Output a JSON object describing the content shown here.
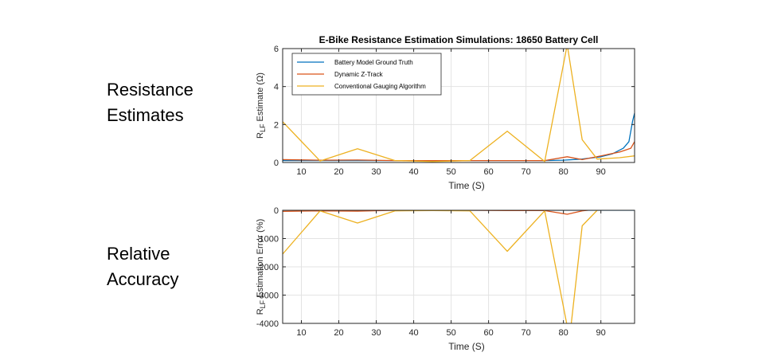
{
  "slide": {
    "top_label": [
      "Resistance",
      "Estimates"
    ],
    "bottom_label": [
      "Relative",
      "Accuracy"
    ]
  },
  "chart_data": [
    {
      "type": "line",
      "title": "E-Bike Resistance Estimation Simulations: 18650 Battery Cell",
      "xlabel": "Time (S)",
      "ylabel_main": "R",
      "ylabel_sub": "LF",
      "ylabel_rest": " Estimate (Ω)",
      "xlim": [
        5,
        99
      ],
      "ylim": [
        0,
        6
      ],
      "xticks": [
        10,
        20,
        30,
        40,
        50,
        60,
        70,
        80,
        90
      ],
      "yticks": [
        0,
        2,
        4,
        6
      ],
      "grid": true,
      "legend_position": "top-left",
      "series": [
        {
          "name": "Battery Model Ground Truth",
          "color": "#0072BD",
          "x": [
            5,
            15,
            25,
            35,
            45,
            55,
            65,
            75,
            80,
            85,
            90,
            93,
            96,
            97.5,
            98.5,
            99
          ],
          "y": [
            0.1,
            0.1,
            0.1,
            0.1,
            0.1,
            0.1,
            0.1,
            0.1,
            0.12,
            0.18,
            0.3,
            0.45,
            0.75,
            1.1,
            2.2,
            2.6
          ]
        },
        {
          "name": "Dynamic Z-Track",
          "color": "#D95319",
          "x": [
            5,
            15,
            25,
            35,
            45,
            55,
            65,
            75,
            81,
            85,
            90,
            95,
            98,
            99
          ],
          "y": [
            0.15,
            0.12,
            0.13,
            0.1,
            0.1,
            0.1,
            0.1,
            0.1,
            0.3,
            0.15,
            0.35,
            0.55,
            0.75,
            1.1
          ]
        },
        {
          "name": "Conventional Gauging Algorithm",
          "color": "#EDB120",
          "x": [
            5,
            15,
            25,
            35,
            45,
            55,
            65,
            75,
            81,
            85,
            89,
            95,
            99
          ],
          "y": [
            2.15,
            0.08,
            0.72,
            0.1,
            0.05,
            0.1,
            1.65,
            0.05,
            6.2,
            1.2,
            0.18,
            0.25,
            0.35
          ]
        }
      ]
    },
    {
      "type": "line",
      "title": "",
      "xlabel": "Time (S)",
      "ylabel_main": "R",
      "ylabel_sub": "LF",
      "ylabel_rest": " Estimation Error (%)",
      "xlim": [
        5,
        99
      ],
      "ylim": [
        -4000,
        0
      ],
      "xticks": [
        10,
        20,
        30,
        40,
        50,
        60,
        70,
        80,
        90
      ],
      "yticks": [
        0,
        -1000,
        -2000,
        -3000,
        -4000
      ],
      "grid": true,
      "series": [
        {
          "name": "Battery Model Ground Truth",
          "color": "#0072BD",
          "x": [
            5,
            99
          ],
          "y": [
            0,
            0
          ]
        },
        {
          "name": "Dynamic Z-Track",
          "color": "#D95319",
          "x": [
            5,
            15,
            25,
            35,
            45,
            55,
            65,
            75,
            81,
            85,
            90,
            95,
            99
          ],
          "y": [
            -40,
            -20,
            -30,
            0,
            0,
            0,
            -10,
            -10,
            -140,
            -20,
            50,
            30,
            40
          ]
        },
        {
          "name": "Conventional Gauging Algorithm",
          "color": "#EDB120",
          "x": [
            5,
            15,
            25,
            35,
            45,
            55,
            65,
            75,
            81,
            82,
            85,
            89,
            93,
            99
          ],
          "y": [
            -1550,
            -20,
            -450,
            -20,
            -10,
            -20,
            -1450,
            -20,
            -4100,
            -4100,
            -550,
            0,
            60,
            30
          ]
        }
      ]
    }
  ]
}
